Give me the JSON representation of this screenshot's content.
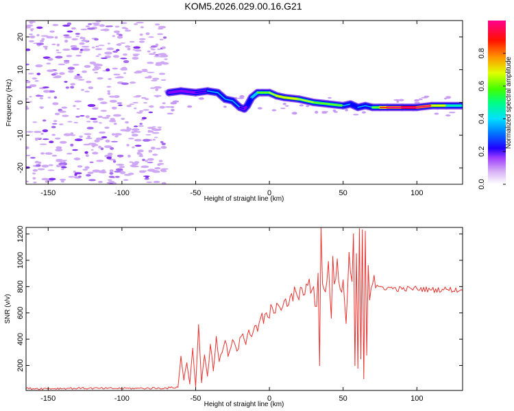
{
  "title": "KOM5.2026.029.00.16.G21",
  "chart_data": [
    {
      "type": "heatmap",
      "title": "KOM5.2026.029.00.16.G21",
      "xlabel": "Height of straight line (km)",
      "ylabel": "Frequency (Hz)",
      "xlim": [
        -165,
        131
      ],
      "ylim": [
        -25,
        25
      ],
      "xticks": [
        -150,
        -100,
        -50,
        0,
        50,
        100
      ],
      "yticks": [
        -20,
        -10,
        0,
        10,
        20
      ],
      "noise_region_x": [
        -165,
        -70
      ],
      "signal_trace": {
        "x": [
          -68,
          -60,
          -50,
          -42,
          -35,
          -30,
          -25,
          -20,
          -17,
          -15,
          -12,
          -8,
          -5,
          0,
          5,
          10,
          20,
          30,
          40,
          50,
          55,
          60,
          65,
          70,
          75,
          80,
          90,
          100,
          110,
          120,
          130
        ],
        "y": [
          3,
          3.5,
          3,
          3.5,
          3,
          1,
          0.5,
          -1.5,
          -2,
          -1,
          1.5,
          3,
          3,
          3,
          2,
          1.5,
          1,
          0,
          -0.5,
          -1,
          -0.5,
          -1.5,
          -1,
          -1.5,
          -1.5,
          -1.5,
          -1.5,
          -1.5,
          -1,
          -1,
          -1
        ],
        "amplitude": [
          0.15,
          0.15,
          0.15,
          0.3,
          0.35,
          0.25,
          0.35,
          0.3,
          0.15,
          0.2,
          0.3,
          0.4,
          0.5,
          0.5,
          0.55,
          0.6,
          0.55,
          0.5,
          0.5,
          0.45,
          0.15,
          0.35,
          0.3,
          0.35,
          0.6,
          0.8,
          0.88,
          0.88,
          0.65,
          0.45,
          0.3
        ]
      },
      "colorbar": {
        "label": "Normalized spectral amplitude",
        "range": [
          0,
          1
        ],
        "ticks": [
          "0.0",
          "0.2",
          "0.4",
          "0.6",
          "0.8"
        ],
        "colors": [
          "#ffffff",
          "#c58df0",
          "#8800ff",
          "#0000ff",
          "#00ccff",
          "#00ff80",
          "#80ff00",
          "#ffff00",
          "#ff8000",
          "#ff0000",
          "#ff0090"
        ]
      }
    },
    {
      "type": "line",
      "xlabel": "Height of straight line (km)",
      "ylabel": "SNR (v/v)",
      "xlim": [
        -165,
        131
      ],
      "ylim": [
        10,
        1250
      ],
      "xticks": [
        -150,
        -100,
        -50,
        0,
        50,
        100
      ],
      "yticks": [
        200,
        400,
        600,
        800,
        1000,
        1200
      ],
      "color": "#e8312d",
      "series": [
        {
          "name": "SNR",
          "x": [
            -165,
            -150,
            -130,
            -110,
            -90,
            -70,
            -62,
            -60,
            -58,
            -56,
            -54,
            -52,
            -50,
            -48,
            -46,
            -44,
            -42,
            -40,
            -38,
            -36,
            -34,
            -32,
            -30,
            -28,
            -26,
            -24,
            -22,
            -20,
            -18,
            -16,
            -14,
            -12,
            -10,
            -8,
            -6,
            -4,
            -2,
            0,
            2,
            4,
            6,
            8,
            10,
            12,
            14,
            16,
            18,
            20,
            22,
            24,
            26,
            28,
            30,
            32,
            33,
            34,
            35,
            36,
            38,
            40,
            42,
            43,
            44,
            46,
            48,
            50,
            52,
            54,
            56,
            57,
            58,
            59,
            60,
            61,
            62,
            63,
            64,
            65,
            66,
            67,
            68,
            70,
            72,
            75,
            80,
            90,
            100,
            110,
            120,
            131
          ],
          "values": [
            25,
            24,
            27,
            25,
            26,
            28,
            35,
            270,
            90,
            220,
            60,
            330,
            40,
            510,
            70,
            280,
            120,
            360,
            160,
            420,
            230,
            300,
            390,
            270,
            340,
            380,
            310,
            410,
            440,
            360,
            470,
            420,
            500,
            460,
            560,
            520,
            600,
            560,
            640,
            600,
            660,
            620,
            690,
            650,
            720,
            690,
            760,
            700,
            790,
            740,
            810,
            750,
            800,
            650,
            900,
            200,
            1250,
            820,
            760,
            990,
            560,
            1030,
            820,
            1010,
            780,
            850,
            520,
            1060,
            840,
            1200,
            200,
            1050,
            180,
            1240,
            250,
            1230,
            100,
            1220,
            280,
            960,
            700,
            820,
            790,
            800,
            790,
            780,
            785,
            775,
            780,
            770
          ]
        }
      ]
    }
  ]
}
